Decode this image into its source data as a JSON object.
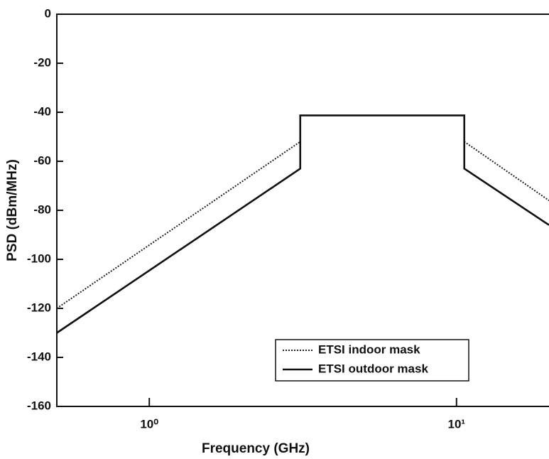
{
  "chart_data": {
    "type": "line",
    "xlabel": "Frequency (GHz)",
    "ylabel": "PSD (dBm/MHz)",
    "xscale": "log",
    "x": [
      0.5,
      3.1,
      3.1,
      10.6,
      10.6,
      20
    ],
    "series": [
      {
        "name": "ETSI indoor mask",
        "color": "#222222",
        "style": "dotted",
        "values": [
          -120,
          -52,
          -41.3,
          -41.3,
          -52,
          -76
        ]
      },
      {
        "name": "ETSI outdoor mask",
        "color": "#111111",
        "style": "solid",
        "values": [
          -130,
          -63,
          -41.3,
          -41.3,
          -63,
          -86
        ]
      }
    ],
    "xlim": [
      0.5,
      20
    ],
    "ylim": [
      -160,
      0
    ],
    "xticks": [
      {
        "value": 1,
        "label": "10⁰"
      },
      {
        "value": 10,
        "label": "10¹"
      }
    ],
    "yticks": [
      0,
      -20,
      -40,
      -60,
      -80,
      -100,
      -120,
      -140,
      -160
    ],
    "grid": false,
    "legend": "lower right"
  }
}
